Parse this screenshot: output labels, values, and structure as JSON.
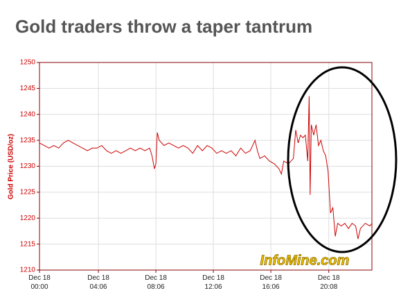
{
  "chart_data": {
    "type": "line",
    "title": "Gold traders throw a taper tantrum",
    "ylabel": "Gold Price (USD/oz)",
    "watermark": "InfoMine.com",
    "color": "#cc0000",
    "grid": true,
    "x": [
      "00:00",
      "00:20",
      "00:40",
      "01:00",
      "01:20",
      "01:40",
      "02:00",
      "02:20",
      "02:40",
      "03:00",
      "03:20",
      "03:40",
      "04:00",
      "04:20",
      "04:40",
      "05:00",
      "05:20",
      "05:40",
      "06:00",
      "06:20",
      "06:40",
      "07:00",
      "07:20",
      "07:40",
      "07:50",
      "08:00",
      "08:06",
      "08:12",
      "08:20",
      "08:40",
      "09:00",
      "09:20",
      "09:40",
      "10:00",
      "10:20",
      "10:40",
      "11:00",
      "11:20",
      "11:40",
      "12:00",
      "12:20",
      "12:40",
      "13:00",
      "13:20",
      "13:40",
      "14:00",
      "14:20",
      "14:40",
      "15:00",
      "15:10",
      "15:20",
      "15:40",
      "16:00",
      "16:20",
      "16:40",
      "16:50",
      "17:00",
      "17:20",
      "17:40",
      "17:50",
      "18:00",
      "18:10",
      "18:20",
      "18:30",
      "18:40",
      "18:46",
      "18:50",
      "18:55",
      "19:05",
      "19:15",
      "19:25",
      "19:35",
      "19:45",
      "19:55",
      "20:05",
      "20:15",
      "20:25",
      "20:35",
      "20:45",
      "21:00",
      "21:15",
      "21:30",
      "21:45",
      "22:00",
      "22:10",
      "22:20",
      "22:40",
      "23:00",
      "23:08"
    ],
    "values": [
      1234.5,
      1234,
      1233.5,
      1234,
      1233.5,
      1234.5,
      1235,
      1234.5,
      1234,
      1233.5,
      1233,
      1233.5,
      1233.5,
      1234,
      1233,
      1232.5,
      1233,
      1232.5,
      1233,
      1233.5,
      1233,
      1233.5,
      1233,
      1233.5,
      1232,
      1229.5,
      1230.5,
      1236.5,
      1235,
      1234,
      1234.5,
      1234,
      1233.5,
      1234,
      1233.5,
      1232.5,
      1234,
      1233,
      1234,
      1233.5,
      1232.5,
      1233,
      1232.5,
      1233,
      1232,
      1233.5,
      1232.5,
      1233,
      1235,
      1233,
      1231.5,
      1232,
      1231,
      1230.5,
      1229.5,
      1228.5,
      1231,
      1230.5,
      1231.5,
      1237,
      1234.5,
      1236,
      1235.5,
      1236,
      1231,
      1243.5,
      1224.5,
      1238,
      1236,
      1238,
      1234,
      1235,
      1233,
      1232,
      1229,
      1221,
      1222,
      1216.5,
      1219,
      1218.5,
      1219,
      1218,
      1219,
      1218.5,
      1216,
      1218,
      1219,
      1218.5,
      1219
    ],
    "xlim": [
      "00:00",
      "23:08"
    ],
    "xticks": [
      {
        "value": "00:00",
        "label": "Dec 18\n00:00"
      },
      {
        "value": "04:06",
        "label": "Dec 18\n04:06"
      },
      {
        "value": "08:06",
        "label": "Dec 18\n08:06"
      },
      {
        "value": "12:06",
        "label": "Dec 18\n12:06"
      },
      {
        "value": "16:06",
        "label": "Dec 18\n16:06"
      },
      {
        "value": "20:08",
        "label": "Dec 18\n20:08"
      }
    ],
    "ylim": [
      1210,
      1250
    ],
    "yticks": [
      1210,
      1215,
      1220,
      1225,
      1230,
      1235,
      1240,
      1245,
      1250
    ]
  }
}
